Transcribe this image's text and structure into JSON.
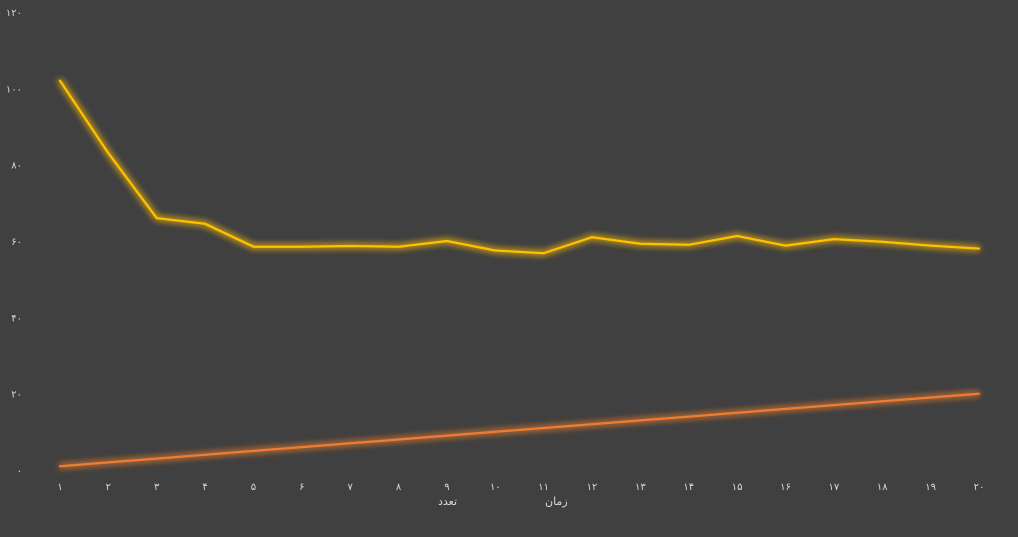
{
  "chart_data": {
    "type": "line",
    "categories": [
      "۱",
      "۲",
      "۳",
      "۴",
      "۵",
      "۶",
      "۷",
      "۸",
      "۹",
      "۱۰",
      "۱۱",
      "۱۲",
      "۱۳",
      "۱۴",
      "۱۵",
      "۱۶",
      "۱۷",
      "۱۸",
      "۱۹",
      "۲۰"
    ],
    "series": [
      {
        "name": "تعدد",
        "color": "#ed7d31",
        "values": [
          1,
          2,
          3,
          4,
          5,
          6,
          7,
          8,
          9,
          10,
          11,
          12,
          13,
          14,
          15,
          16,
          17,
          18,
          19,
          20
        ]
      },
      {
        "name": "زمان",
        "color": "#ffc000",
        "values": [
          102,
          83,
          66,
          64.5,
          58.5,
          58.5,
          58.7,
          58.5,
          60,
          57.5,
          56.8,
          61,
          59.3,
          59,
          61.3,
          58.8,
          60.5,
          59.8,
          58.8,
          58
        ]
      }
    ],
    "ylim": [
      0,
      120
    ],
    "yticks": [
      0,
      20,
      40,
      60,
      80,
      100,
      120
    ],
    "ytick_labels": [
      "۰",
      "۲۰",
      "۴۰",
      "۶۰",
      "۸۰",
      "۱۰۰",
      "۱۲۰"
    ],
    "grid": false,
    "legend": "bottom-center",
    "title": "",
    "xlabel": "",
    "ylabel": ""
  }
}
